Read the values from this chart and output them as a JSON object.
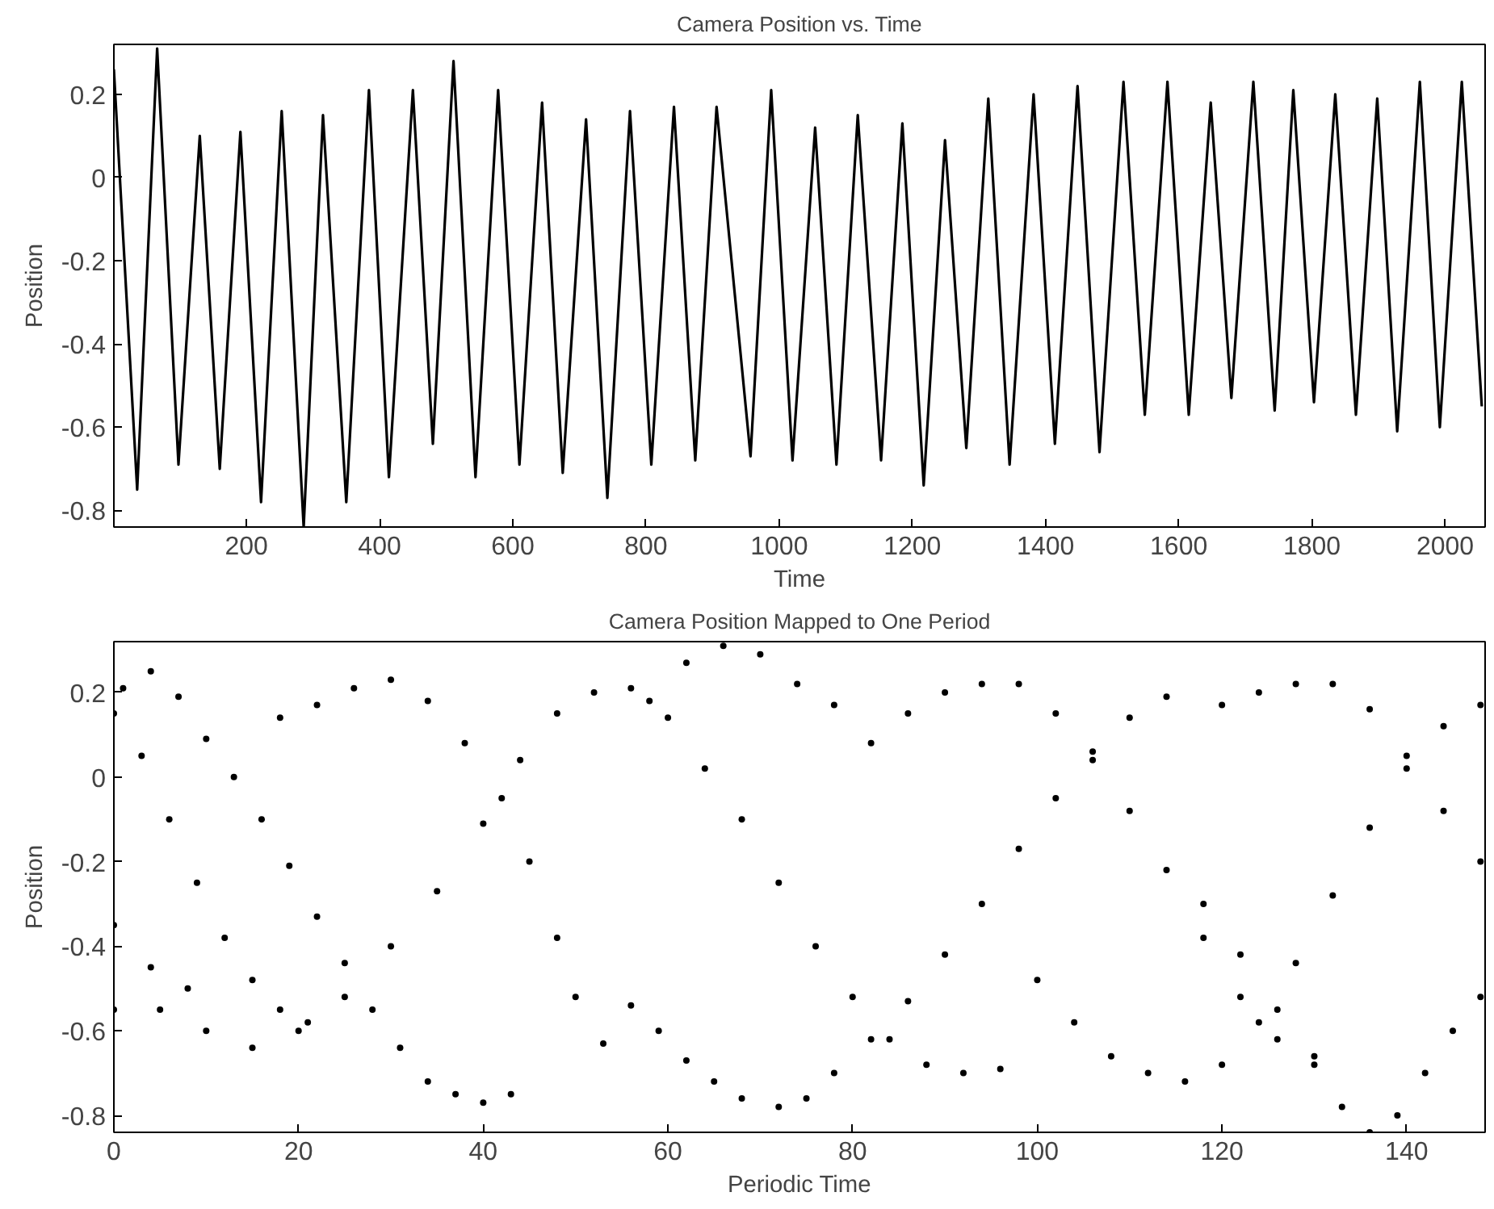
{
  "chart_data": [
    {
      "type": "line",
      "title": "Camera Position vs. Time",
      "xlabel": "Time",
      "ylabel": "Position",
      "xlim": [
        1,
        2060
      ],
      "ylim": [
        -0.84,
        0.32
      ],
      "xticks": [
        200,
        400,
        600,
        800,
        1000,
        1200,
        1400,
        1600,
        1800,
        2000
      ],
      "yticks": [
        -0.8,
        -0.6,
        -0.4,
        -0.2,
        0,
        0.2
      ],
      "series": [
        {
          "color": "#000000",
          "x": [
            1,
            36,
            66,
            98,
            130,
            160,
            191,
            222,
            253,
            286,
            315,
            350,
            384,
            414,
            450,
            480,
            511,
            544,
            578,
            610,
            644,
            675,
            710,
            742,
            776,
            808,
            842,
            874,
            906,
            957,
            988,
            1020,
            1054,
            1086,
            1118,
            1153,
            1185,
            1217,
            1249,
            1281,
            1314,
            1346,
            1382,
            1414,
            1448,
            1481,
            1517,
            1549,
            1583,
            1615,
            1648,
            1679,
            1712,
            1744,
            1772,
            1803,
            1835,
            1866,
            1898,
            1928,
            1962,
            1992,
            2025,
            2055
          ],
          "values": [
            0.26,
            -0.75,
            0.31,
            -0.69,
            0.1,
            -0.7,
            0.11,
            -0.78,
            0.16,
            -0.84,
            0.15,
            -0.78,
            0.21,
            -0.72,
            0.21,
            -0.64,
            0.28,
            -0.72,
            0.21,
            -0.69,
            0.18,
            -0.71,
            0.14,
            -0.77,
            0.16,
            -0.69,
            0.17,
            -0.68,
            0.17,
            -0.67,
            0.21,
            -0.68,
            0.12,
            -0.69,
            0.15,
            -0.68,
            0.13,
            -0.74,
            0.09,
            -0.65,
            0.19,
            -0.69,
            0.2,
            -0.64,
            0.22,
            -0.66,
            0.23,
            -0.57,
            0.23,
            -0.57,
            0.18,
            -0.53,
            0.23,
            -0.56,
            0.21,
            -0.54,
            0.2,
            -0.57,
            0.19,
            -0.61,
            0.23,
            -0.6,
            0.23,
            -0.55
          ]
        }
      ]
    },
    {
      "type": "scatter",
      "title": "Camera Position Mapped to One Period",
      "xlabel": "Periodic Time",
      "ylabel": "Position",
      "xlim": [
        0,
        148.5
      ],
      "ylim": [
        -0.84,
        0.32
      ],
      "xticks": [
        0,
        20,
        40,
        60,
        80,
        100,
        120,
        140
      ],
      "yticks": [
        -0.8,
        -0.6,
        -0.4,
        -0.2,
        0,
        0.2
      ],
      "marker": "circle",
      "series": [
        {
          "color": "#000000",
          "x": [
            1,
            4,
            7,
            10,
            13,
            16,
            19,
            22,
            25,
            28,
            31,
            34,
            37,
            40,
            43,
            18,
            22,
            26,
            30,
            34,
            38,
            42,
            45,
            48,
            50,
            53,
            56,
            59,
            62,
            65,
            68,
            72,
            75,
            78,
            82,
            86,
            90,
            94,
            98,
            102,
            106,
            110,
            114,
            0,
            5,
            10,
            15,
            20,
            25,
            30,
            35,
            40,
            44,
            48,
            52,
            56,
            60,
            64,
            68,
            72,
            76,
            80,
            84,
            88,
            92,
            96,
            58,
            62,
            66,
            70,
            74,
            78,
            82,
            100,
            104,
            108,
            112,
            116,
            120,
            124,
            128,
            132,
            136,
            140,
            144,
            148,
            118,
            122,
            126,
            130,
            133,
            136,
            139,
            142,
            145,
            148,
            86,
            90,
            94,
            98,
            102,
            106,
            110,
            114,
            118,
            122,
            126,
            130,
            120,
            124,
            128,
            132,
            136,
            140,
            144,
            148,
            0,
            3,
            6,
            9,
            12,
            15,
            18,
            21,
            0,
            4,
            8
          ],
          "values": [
            0.21,
            0.25,
            0.19,
            0.09,
            0.0,
            -0.1,
            -0.21,
            -0.33,
            -0.44,
            -0.55,
            -0.64,
            -0.72,
            -0.75,
            -0.77,
            -0.75,
            0.14,
            0.17,
            0.21,
            0.23,
            0.18,
            0.08,
            -0.05,
            -0.2,
            -0.38,
            -0.52,
            -0.63,
            -0.54,
            -0.6,
            -0.67,
            -0.72,
            -0.76,
            -0.78,
            -0.76,
            -0.7,
            -0.62,
            -0.53,
            -0.42,
            -0.3,
            -0.17,
            -0.05,
            0.06,
            0.14,
            0.19,
            -0.55,
            -0.55,
            -0.6,
            -0.64,
            -0.6,
            -0.52,
            -0.4,
            -0.27,
            -0.11,
            0.04,
            0.15,
            0.2,
            0.21,
            0.14,
            0.02,
            -0.1,
            -0.25,
            -0.4,
            -0.52,
            -0.62,
            -0.68,
            -0.7,
            -0.69,
            0.18,
            0.27,
            0.31,
            0.29,
            0.22,
            0.17,
            0.08,
            -0.48,
            -0.58,
            -0.66,
            -0.7,
            -0.72,
            -0.68,
            -0.58,
            -0.44,
            -0.28,
            -0.12,
            0.02,
            0.12,
            0.17,
            -0.3,
            -0.42,
            -0.55,
            -0.68,
            -0.78,
            -0.84,
            -0.8,
            -0.7,
            -0.6,
            -0.52,
            0.15,
            0.2,
            0.22,
            0.22,
            0.15,
            0.04,
            -0.08,
            -0.22,
            -0.38,
            -0.52,
            -0.62,
            -0.66,
            0.17,
            0.2,
            0.22,
            0.22,
            0.16,
            0.05,
            -0.08,
            -0.2,
            0.15,
            0.05,
            -0.1,
            -0.25,
            -0.38,
            -0.48,
            -0.55,
            -0.58,
            -0.35,
            -0.45,
            -0.5
          ]
        }
      ]
    }
  ]
}
